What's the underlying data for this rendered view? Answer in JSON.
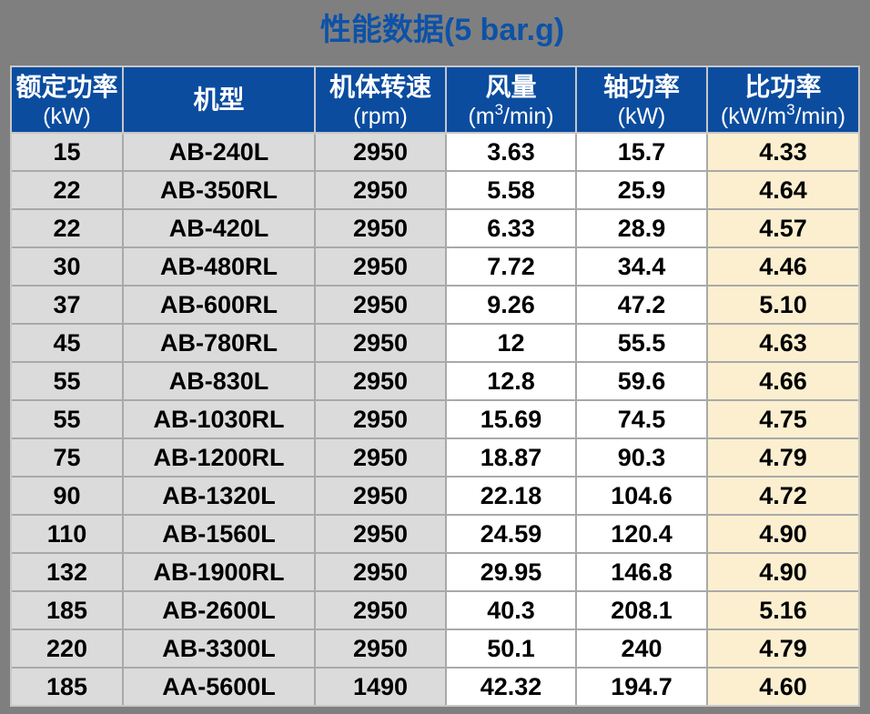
{
  "title": "性能数据(5 bar.g)",
  "colors": {
    "background": "#7f7f7f",
    "title_blue": "#0d52a8",
    "header_blue": "#0b4c9f",
    "header_text": "#ffffff",
    "col_gray_fill": "#dbdbdb",
    "col_white_fill": "#ffffff",
    "col_cream_fill": "#fbefd0",
    "grid_line": "#a9a9a9",
    "outer_border": "#c8c8c8",
    "body_text": "#000000"
  },
  "table": {
    "columns": [
      {
        "key": "rated-power",
        "title_cn": "额定功率",
        "unit_prefix": "(kW)",
        "unit_sup": "",
        "unit_suffix": ""
      },
      {
        "key": "model",
        "title_cn": "机型",
        "unit_prefix": "",
        "unit_sup": "",
        "unit_suffix": ""
      },
      {
        "key": "rotation-speed",
        "title_cn": "机体转速",
        "unit_prefix": "(rpm)",
        "unit_sup": "",
        "unit_suffix": ""
      },
      {
        "key": "air-flow",
        "title_cn": "风量",
        "unit_prefix": "(m",
        "unit_sup": "3",
        "unit_suffix": "/min)"
      },
      {
        "key": "shaft-power",
        "title_cn": "轴功率",
        "unit_prefix": "(kW)",
        "unit_sup": "",
        "unit_suffix": ""
      },
      {
        "key": "specific-power",
        "title_cn": "比功率",
        "unit_prefix": "(kW/m",
        "unit_sup": "3",
        "unit_suffix": "/min)"
      }
    ],
    "rows": [
      [
        "15",
        "AB-240L",
        "2950",
        "3.63",
        "15.7",
        "4.33"
      ],
      [
        "22",
        "AB-350RL",
        "2950",
        "5.58",
        "25.9",
        "4.64"
      ],
      [
        "22",
        "AB-420L",
        "2950",
        "6.33",
        "28.9",
        "4.57"
      ],
      [
        "30",
        "AB-480RL",
        "2950",
        "7.72",
        "34.4",
        "4.46"
      ],
      [
        "37",
        "AB-600RL",
        "2950",
        "9.26",
        "47.2",
        "5.10"
      ],
      [
        "45",
        "AB-780RL",
        "2950",
        "12",
        "55.5",
        "4.63"
      ],
      [
        "55",
        "AB-830L",
        "2950",
        "12.8",
        "59.6",
        "4.66"
      ],
      [
        "55",
        "AB-1030RL",
        "2950",
        "15.69",
        "74.5",
        "4.75"
      ],
      [
        "75",
        "AB-1200RL",
        "2950",
        "18.87",
        "90.3",
        "4.79"
      ],
      [
        "90",
        "AB-1320L",
        "2950",
        "22.18",
        "104.6",
        "4.72"
      ],
      [
        "110",
        "AB-1560L",
        "2950",
        "24.59",
        "120.4",
        "4.90"
      ],
      [
        "132",
        "AB-1900RL",
        "2950",
        "29.95",
        "146.8",
        "4.90"
      ],
      [
        "185",
        "AB-2600L",
        "2950",
        "40.3",
        "208.1",
        "5.16"
      ],
      [
        "220",
        "AB-3300L",
        "2950",
        "50.1",
        "240",
        "4.79"
      ],
      [
        "185",
        "AA-5600L",
        "1490",
        "42.32",
        "194.7",
        "4.60"
      ]
    ]
  },
  "chart_data": {
    "type": "table",
    "title": "性能数据(5 bar.g)",
    "columns": [
      "额定功率 (kW)",
      "机型",
      "机体转速 (rpm)",
      "风量 (m3/min)",
      "轴功率 (kW)",
      "比功率 (kW/m3/min)"
    ],
    "rows": [
      [
        "15",
        "AB-240L",
        "2950",
        "3.63",
        "15.7",
        "4.33"
      ],
      [
        "22",
        "AB-350RL",
        "2950",
        "5.58",
        "25.9",
        "4.64"
      ],
      [
        "22",
        "AB-420L",
        "2950",
        "6.33",
        "28.9",
        "4.57"
      ],
      [
        "30",
        "AB-480RL",
        "2950",
        "7.72",
        "34.4",
        "4.46"
      ],
      [
        "37",
        "AB-600RL",
        "2950",
        "9.26",
        "47.2",
        "5.10"
      ],
      [
        "45",
        "AB-780RL",
        "2950",
        "12",
        "55.5",
        "4.63"
      ],
      [
        "55",
        "AB-830L",
        "2950",
        "12.8",
        "59.6",
        "4.66"
      ],
      [
        "55",
        "AB-1030RL",
        "2950",
        "15.69",
        "74.5",
        "4.75"
      ],
      [
        "75",
        "AB-1200RL",
        "2950",
        "18.87",
        "90.3",
        "4.79"
      ],
      [
        "90",
        "AB-1320L",
        "2950",
        "22.18",
        "104.6",
        "4.72"
      ],
      [
        "110",
        "AB-1560L",
        "2950",
        "24.59",
        "120.4",
        "4.90"
      ],
      [
        "132",
        "AB-1900RL",
        "2950",
        "29.95",
        "146.8",
        "4.90"
      ],
      [
        "185",
        "AB-2600L",
        "2950",
        "40.3",
        "208.1",
        "5.16"
      ],
      [
        "220",
        "AB-3300L",
        "2950",
        "50.1",
        "240",
        "4.79"
      ],
      [
        "185",
        "AA-5600L",
        "1490",
        "42.32",
        "194.7",
        "4.60"
      ]
    ]
  }
}
